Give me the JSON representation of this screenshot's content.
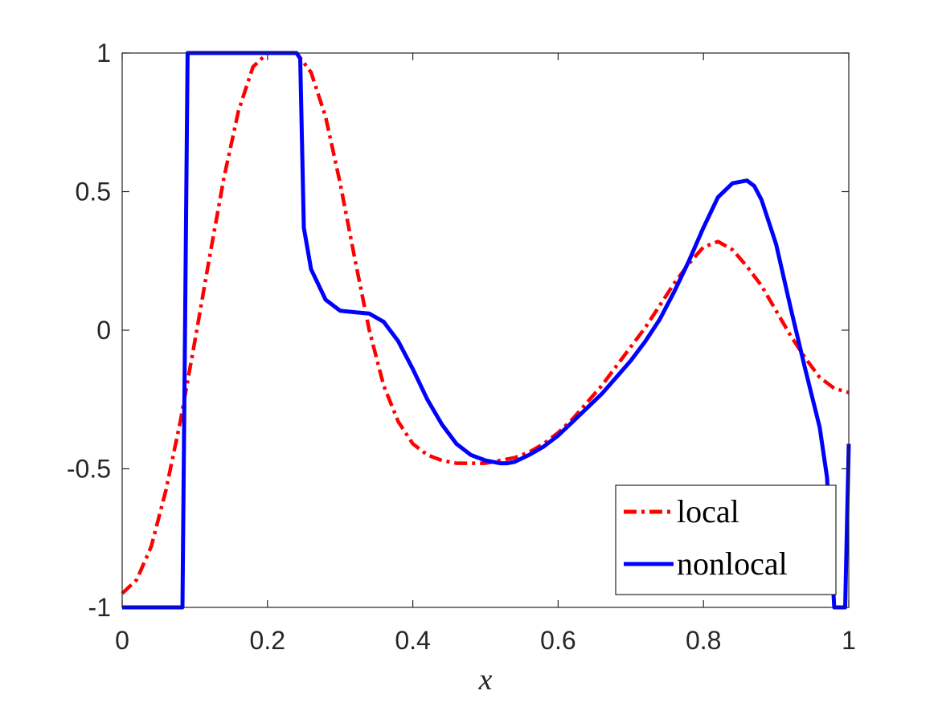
{
  "chart_data": {
    "type": "line",
    "title": "",
    "xlabel": "x",
    "ylabel": "",
    "xlim": [
      0,
      1
    ],
    "ylim": [
      -1,
      1
    ],
    "xticks": [
      0,
      0.2,
      0.4,
      0.6,
      0.8,
      1
    ],
    "xtick_labels": [
      "0",
      "0.2",
      "0.4",
      "0.6",
      "0.8",
      "1"
    ],
    "yticks": [
      -1,
      -0.5,
      0,
      0.5,
      1
    ],
    "ytick_labels": [
      "-1",
      "-0.5",
      "0",
      "0.5",
      "1"
    ],
    "grid": false,
    "legend_position": "bottom-right",
    "series": [
      {
        "name": "local",
        "color": "#ff0000",
        "style": "dash-dot",
        "x": [
          0,
          0.02,
          0.04,
          0.06,
          0.08,
          0.1,
          0.12,
          0.14,
          0.16,
          0.18,
          0.2,
          0.22,
          0.24,
          0.26,
          0.28,
          0.3,
          0.32,
          0.34,
          0.36,
          0.38,
          0.4,
          0.42,
          0.44,
          0.46,
          0.48,
          0.5,
          0.52,
          0.54,
          0.56,
          0.58,
          0.6,
          0.62,
          0.64,
          0.66,
          0.68,
          0.7,
          0.72,
          0.74,
          0.76,
          0.78,
          0.8,
          0.82,
          0.84,
          0.86,
          0.88,
          0.9,
          0.92,
          0.94,
          0.96,
          0.98,
          1.0
        ],
        "y": [
          -0.95,
          -0.9,
          -0.78,
          -0.58,
          -0.33,
          -0.04,
          0.26,
          0.55,
          0.79,
          0.95,
          1.0,
          1.0,
          1.0,
          0.93,
          0.77,
          0.53,
          0.26,
          0.0,
          -0.2,
          -0.33,
          -0.41,
          -0.45,
          -0.47,
          -0.48,
          -0.48,
          -0.48,
          -0.47,
          -0.46,
          -0.44,
          -0.41,
          -0.37,
          -0.32,
          -0.26,
          -0.2,
          -0.13,
          -0.06,
          0.01,
          0.09,
          0.17,
          0.24,
          0.3,
          0.32,
          0.29,
          0.23,
          0.16,
          0.07,
          -0.02,
          -0.1,
          -0.17,
          -0.21,
          -0.225
        ]
      },
      {
        "name": "nonlocal",
        "color": "#0000ff",
        "style": "solid",
        "x": [
          0,
          0.04,
          0.083,
          0.09,
          0.24,
          0.245,
          0.25,
          0.26,
          0.28,
          0.3,
          0.32,
          0.34,
          0.36,
          0.38,
          0.4,
          0.42,
          0.44,
          0.46,
          0.48,
          0.5,
          0.52,
          0.53,
          0.54,
          0.56,
          0.58,
          0.6,
          0.62,
          0.64,
          0.66,
          0.68,
          0.7,
          0.72,
          0.74,
          0.76,
          0.78,
          0.8,
          0.82,
          0.84,
          0.86,
          0.87,
          0.88,
          0.9,
          0.92,
          0.94,
          0.96,
          0.97,
          0.975,
          0.98,
          0.99,
          0.995,
          1.0
        ],
        "y": [
          -1.0,
          -1.0,
          -1.0,
          1.0,
          1.0,
          0.98,
          0.37,
          0.22,
          0.11,
          0.07,
          0.065,
          0.06,
          0.03,
          -0.04,
          -0.14,
          -0.25,
          -0.34,
          -0.41,
          -0.45,
          -0.47,
          -0.48,
          -0.48,
          -0.475,
          -0.45,
          -0.42,
          -0.38,
          -0.33,
          -0.28,
          -0.23,
          -0.17,
          -0.11,
          -0.04,
          0.04,
          0.14,
          0.25,
          0.37,
          0.48,
          0.53,
          0.54,
          0.52,
          0.47,
          0.31,
          0.08,
          -0.14,
          -0.35,
          -0.53,
          -0.76,
          -1.0,
          -1.0,
          -1.0,
          -0.41
        ]
      }
    ]
  }
}
